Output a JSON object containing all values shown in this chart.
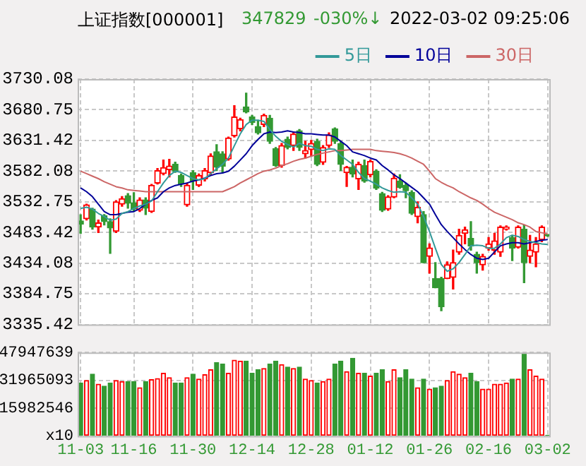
{
  "chart_data": [
    {
      "type": "candlestick",
      "title": "上证指数[000001]",
      "annotations": [
        "347829",
        "-030%↓",
        "2022-03-02 09:25:06"
      ],
      "categories": [
        null,
        null,
        null,
        null,
        null,
        null,
        null,
        null,
        null,
        null,
        null,
        null,
        null,
        null,
        null,
        null,
        null,
        null,
        null,
        null,
        null,
        null,
        null,
        null,
        null,
        null,
        null,
        null,
        null,
        null,
        null,
        null,
        null,
        null,
        null,
        null,
        null,
        null,
        null,
        null,
        null,
        null,
        null,
        null,
        null,
        null,
        null,
        null,
        null,
        null,
        null,
        null,
        null,
        null,
        null,
        null,
        null,
        null,
        null,
        null,
        null,
        null,
        null,
        null,
        null,
        null,
        null,
        null,
        null,
        null,
        null,
        null,
        null,
        null,
        null,
        null,
        null,
        null,
        null,
        null
      ],
      "ohlc": [
        [
          3502,
          3512,
          3482,
          3497
        ],
        [
          3505.5,
          3529,
          3503.5,
          3527.8
        ],
        [
          3521,
          3522.4,
          3488.7,
          3492
        ],
        [
          3492,
          3503.5,
          3483.3,
          3498.8
        ],
        [
          3510.3,
          3512.3,
          3495.4,
          3500.8
        ],
        [
          3500.8,
          3505.5,
          3449.7,
          3490.7
        ],
        [
          3485.4,
          3534.5,
          3483.3,
          3532.5
        ],
        [
          3529,
          3541.2,
          3525.7,
          3537.8
        ],
        [
          3542.6,
          3545.9,
          3522.4,
          3530.4
        ],
        [
          3531.1,
          3547.3,
          3517,
          3521
        ],
        [
          3519,
          3539.2,
          3517,
          3535.8
        ],
        [
          3535.8,
          3539.2,
          3512.3,
          3522.4
        ],
        [
          3517,
          3560.7,
          3515.6,
          3559.4
        ],
        [
          3562.7,
          3586.3,
          3561.4,
          3583
        ],
        [
          3578.2,
          3599.8,
          3576.2,
          3587.6
        ],
        [
          3584.3,
          3601.1,
          3572.8,
          3590.3
        ],
        [
          3593,
          3596.4,
          3580.2,
          3581.6
        ],
        [
          3574.9,
          3577.6,
          3557.4,
          3561.4
        ],
        [
          3527.8,
          3562.7,
          3525.7,
          3559.4
        ],
        [
          3579.6,
          3583,
          3552.7,
          3566.1
        ],
        [
          3559.4,
          3577.6,
          3557.4,
          3574.9
        ],
        [
          3569.5,
          3586.3,
          3566.1,
          3583
        ],
        [
          3579.6,
          3609.9,
          3576.2,
          3606.5
        ],
        [
          3613.2,
          3624.7,
          3583,
          3588.3
        ],
        [
          3609.9,
          3613.2,
          3579.6,
          3589.7
        ],
        [
          3601.8,
          3636.8,
          3599.8,
          3635.4
        ],
        [
          3638.8,
          3687.3,
          3636.8,
          3669.1
        ],
        [
          3650.2,
          3667.1,
          3646.9,
          3665
        ],
        [
          3685.2,
          3707.4,
          3675.8,
          3677.2
        ],
        [
          3669.1,
          3671.8,
          3657,
          3660.3
        ],
        [
          3653.8,
          3663.9,
          3641.7,
          3643.7
        ],
        [
          3657,
          3673.8,
          3653.6,
          3671.8
        ],
        [
          3667.1,
          3671.8,
          3626.7,
          3630
        ],
        [
          3618,
          3620,
          3589.7,
          3591
        ],
        [
          3591,
          3626.7,
          3588.3,
          3623.3
        ],
        [
          3633.4,
          3636.8,
          3618,
          3620
        ],
        [
          3623.3,
          3644.9,
          3615.2,
          3641.5
        ],
        [
          3646.9,
          3648.9,
          3615.2,
          3620
        ],
        [
          3609.9,
          3630,
          3603.1,
          3615.2
        ],
        [
          3616.6,
          3631.4,
          3606.5,
          3626.7
        ],
        [
          3630,
          3633.4,
          3591,
          3593
        ],
        [
          3596.4,
          3623.3,
          3593,
          3620
        ],
        [
          3623.3,
          3643.5,
          3620,
          3640.2
        ],
        [
          3650.2,
          3651.6,
          3626.7,
          3630
        ],
        [
          3626.7,
          3630,
          3583,
          3593
        ],
        [
          3579.6,
          3589.7,
          3557.4,
          3588.3
        ],
        [
          3588.3,
          3599.8,
          3572.8,
          3577.6
        ],
        [
          3569.5,
          3596.4,
          3552.7,
          3593
        ],
        [
          3591,
          3599.8,
          3564.1,
          3566.1
        ],
        [
          3576.2,
          3599.8,
          3572.8,
          3597.7
        ],
        [
          3581.6,
          3584.3,
          3552.7,
          3554.7
        ],
        [
          3545.9,
          3547.9,
          3517,
          3519
        ],
        [
          3521,
          3542.6,
          3519,
          3540.5
        ],
        [
          3540.5,
          3577.6,
          3539.2,
          3570.8
        ],
        [
          3566.1,
          3576.2,
          3554.7,
          3556
        ],
        [
          3559.4,
          3562.7,
          3539.2,
          3550.6
        ],
        [
          3547.9,
          3550.6,
          3512.3,
          3514.3
        ],
        [
          3508.9,
          3532.5,
          3498.8,
          3523.7
        ],
        [
          3512.3,
          3517,
          3434.9,
          3434.9
        ],
        [
          3445,
          3465.2,
          3418.1,
          3458.4
        ],
        [
          3409.3,
          3434.9,
          3394.5,
          3394.5
        ],
        [
          3409.3,
          3411.3,
          3357.5,
          3364.2
        ],
        [
          3409.3,
          3436.2,
          3409.3,
          3431.5
        ],
        [
          3411.3,
          3455,
          3392.5,
          3434.9
        ],
        [
          3451.7,
          3488.7,
          3448.5,
          3478.6
        ],
        [
          3482,
          3492,
          3465.2,
          3487.9
        ],
        [
          3473.9,
          3500.8,
          3455,
          3461.8
        ],
        [
          3448.3,
          3451.7,
          3418.1,
          3434.9
        ],
        [
          3431.5,
          3448.3,
          3422.8,
          3445
        ],
        [
          3458.4,
          3475.3,
          3455,
          3465.2
        ],
        [
          3455,
          3482,
          3448.3,
          3469.9
        ],
        [
          3451.7,
          3494.1,
          3445,
          3492
        ],
        [
          3488.7,
          3494.1,
          3487.4,
          3492
        ],
        [
          3475.3,
          3478.6,
          3438.2,
          3458.4
        ],
        [
          3459.8,
          3494.1,
          3458.4,
          3492
        ],
        [
          3488.7,
          3495.5,
          3402.6,
          3434.9
        ],
        [
          3445,
          3478.6,
          3434.9,
          3455
        ],
        [
          3451.7,
          3475.3,
          3428.2,
          3465.2
        ],
        [
          3471.9,
          3494.1,
          3468.5,
          3492
        ],
        [
          3478,
          3479,
          3477,
          3478
        ]
      ],
      "colors": [
        "#339933",
        "#ff0000",
        "#339933",
        "#ff0000",
        "#339933",
        "#339933",
        "#ff0000",
        "#ff0000",
        "#339933",
        "#339933",
        "#ff0000",
        "#339933",
        "#ff0000",
        "#ff0000",
        "#ff0000",
        "#ff0000",
        "#339933",
        "#339933",
        "#ff0000",
        "#339933",
        "#ff0000",
        "#ff0000",
        "#ff0000",
        "#339933",
        "#339933",
        "#ff0000",
        "#ff0000",
        "#ff0000",
        "#339933",
        "#339933",
        "#339933",
        "#ff0000",
        "#339933",
        "#339933",
        "#ff0000",
        "#339933",
        "#ff0000",
        "#339933",
        "#ff0000",
        "#ff0000",
        "#339933",
        "#ff0000",
        "#ff0000",
        "#339933",
        "#339933",
        "#ff0000",
        "#339933",
        "#ff0000",
        "#339933",
        "#ff0000",
        "#339933",
        "#339933",
        "#ff0000",
        "#ff0000",
        "#339933",
        "#339933",
        "#339933",
        "#ff0000",
        "#339933",
        "#ff0000",
        "#339933",
        "#339933",
        "#ff0000",
        "#ff0000",
        "#ff0000",
        "#ff0000",
        "#339933",
        "#339933",
        "#ff0000",
        "#ff0000",
        "#ff0000",
        "#ff0000",
        "#ff0000",
        "#339933",
        "#ff0000",
        "#339933",
        "#ff0000",
        "#ff0000",
        "#ff0000",
        "#339933"
      ],
      "series": [
        {
          "name": "5日",
          "type": "line",
          "color": "#339999",
          "values": [
            3522,
            3524,
            3521,
            3514,
            3509,
            3503,
            3505,
            3514,
            3517,
            3522,
            3526,
            3529,
            3534,
            3549,
            3563,
            3575,
            3582,
            3580,
            3575,
            3570,
            3568,
            3570,
            3578,
            3586,
            3593,
            3603,
            3623,
            3642,
            3657,
            3664,
            3664,
            3662,
            3649,
            3638,
            3630,
            3625,
            3621,
            3627,
            3623,
            3622,
            3617,
            3615,
            3618,
            3617,
            3607,
            3600,
            3593,
            3580,
            3570,
            3566,
            3561,
            3555,
            3551,
            3548,
            3549,
            3548,
            3539,
            3529,
            3509,
            3485,
            3458,
            3432,
            3421,
            3425,
            3435,
            3448,
            3462,
            3463,
            3462,
            3458,
            3458,
            3465,
            3475,
            3479,
            3477,
            3472,
            3469,
            3467,
            3465,
            3464
          ]
        },
        {
          "name": "10日",
          "type": "line",
          "color": "#000099",
          "values": [
            3555,
            3549,
            3541,
            3529,
            3517,
            3512,
            3512,
            3514,
            3516,
            3517,
            3522,
            3529,
            3535,
            3539,
            3549,
            3555,
            3559,
            3561,
            3563,
            3566,
            3568,
            3571,
            3575,
            3578,
            3579,
            3582,
            3590,
            3600,
            3610,
            3623,
            3633,
            3642,
            3645,
            3644,
            3645,
            3647,
            3645,
            3644,
            3642,
            3642,
            3641,
            3640,
            3640,
            3637,
            3630,
            3623,
            3613,
            3610,
            3607,
            3603,
            3600,
            3591,
            3584,
            3576,
            3570,
            3563,
            3556,
            3549,
            3539,
            3529,
            3512,
            3496,
            3485,
            3475,
            3465,
            3456,
            3448,
            3442,
            3440,
            3442,
            3452,
            3462,
            3465,
            3467,
            3467,
            3465,
            3467,
            3469,
            3471,
            3472
          ]
        },
        {
          "name": "30日",
          "type": "line",
          "color": "#cc6666",
          "values": [
            3582,
            3578,
            3574,
            3570,
            3565,
            3561,
            3557,
            3555,
            3552,
            3551,
            3550,
            3549,
            3549,
            3549,
            3549,
            3549,
            3549,
            3549,
            3549,
            3549,
            3549,
            3549,
            3549,
            3549,
            3549,
            3553,
            3557,
            3563,
            3568,
            3573,
            3578,
            3582,
            3584,
            3587,
            3591,
            3594,
            3598,
            3601,
            3603,
            3606,
            3609,
            3611,
            3613,
            3615,
            3615,
            3616,
            3617,
            3617,
            3617,
            3617,
            3615,
            3614,
            3613,
            3612,
            3610,
            3607,
            3603,
            3598,
            3593,
            3582,
            3570,
            3564,
            3559,
            3555,
            3549,
            3544,
            3539,
            3535,
            3529,
            3522,
            3516,
            3512,
            3508,
            3504,
            3499,
            3496,
            3492,
            3485,
            3483,
            3481
          ]
        }
      ],
      "ylim": [
        3335.42,
        3730.08
      ],
      "yticks": [
        3335.42,
        3384.75,
        3434.08,
        3483.42,
        3532.75,
        3582.08,
        3631.42,
        3680.75,
        3730.08
      ],
      "grid": true,
      "legend": "top right",
      "tick_labels": "y",
      "marker": "none",
      "line_style": "solid"
    },
    {
      "type": "bar",
      "categories": [
        "11-03",
        null,
        null,
        null,
        null,
        null,
        null,
        null,
        null,
        "11-16",
        null,
        null,
        null,
        null,
        null,
        null,
        null,
        null,
        null,
        "11-30",
        null,
        null,
        null,
        null,
        null,
        null,
        null,
        null,
        null,
        "12-14",
        null,
        null,
        null,
        null,
        null,
        null,
        null,
        null,
        null,
        "12-28",
        null,
        null,
        null,
        null,
        null,
        null,
        null,
        null,
        null,
        "01-12",
        null,
        null,
        null,
        null,
        null,
        null,
        null,
        null,
        null,
        "01-26",
        null,
        null,
        null,
        null,
        null,
        null,
        null,
        null,
        null,
        "02-16",
        null,
        null,
        null,
        null,
        null,
        null,
        null,
        null,
        null,
        "03-02"
      ],
      "values": [
        30500000,
        31900000,
        35500000,
        29700000,
        28600000,
        30500000,
        31900000,
        31300000,
        31300000,
        31300000,
        27700000,
        31300000,
        32400000,
        33000000,
        36000000,
        33500000,
        30500000,
        30500000,
        33500000,
        35500000,
        32700000,
        35200000,
        38000000,
        42100000,
        41300000,
        36000000,
        43500000,
        43000000,
        43000000,
        36000000,
        38000000,
        38800000,
        41300000,
        43000000,
        41000000,
        39600000,
        38800000,
        39600000,
        32700000,
        31900000,
        30500000,
        31300000,
        32700000,
        41300000,
        43000000,
        36900000,
        44600000,
        36000000,
        36000000,
        34400000,
        36000000,
        38000000,
        31300000,
        38000000,
        33500000,
        38000000,
        32700000,
        27700000,
        32700000,
        26900000,
        27700000,
        28600000,
        31900000,
        36900000,
        35500000,
        33500000,
        36000000,
        31300000,
        26900000,
        26900000,
        29700000,
        29700000,
        30500000,
        32700000,
        32700000,
        47500000,
        38000000,
        34400000,
        32700000,
        500000
      ],
      "colors": [
        "#339933",
        "#ff0000",
        "#339933",
        "#ff0000",
        "#339933",
        "#339933",
        "#ff0000",
        "#ff0000",
        "#339933",
        "#339933",
        "#ff0000",
        "#339933",
        "#ff0000",
        "#ff0000",
        "#ff0000",
        "#ff0000",
        "#339933",
        "#339933",
        "#ff0000",
        "#339933",
        "#ff0000",
        "#ff0000",
        "#ff0000",
        "#339933",
        "#339933",
        "#ff0000",
        "#ff0000",
        "#ff0000",
        "#339933",
        "#339933",
        "#339933",
        "#ff0000",
        "#339933",
        "#339933",
        "#ff0000",
        "#339933",
        "#ff0000",
        "#339933",
        "#ff0000",
        "#ff0000",
        "#339933",
        "#ff0000",
        "#ff0000",
        "#339933",
        "#339933",
        "#ff0000",
        "#339933",
        "#ff0000",
        "#339933",
        "#ff0000",
        "#339933",
        "#339933",
        "#ff0000",
        "#ff0000",
        "#339933",
        "#339933",
        "#339933",
        "#ff0000",
        "#339933",
        "#ff0000",
        "#339933",
        "#339933",
        "#ff0000",
        "#ff0000",
        "#ff0000",
        "#ff0000",
        "#339933",
        "#339933",
        "#ff0000",
        "#ff0000",
        "#ff0000",
        "#ff0000",
        "#ff0000",
        "#339933",
        "#ff0000",
        "#339933",
        "#ff0000",
        "#ff0000",
        "#ff0000",
        "#339933"
      ],
      "ylim": [
        0,
        47947639
      ],
      "yticks": [
        {
          "value": 0,
          "label": "x10"
        },
        15982546,
        31965093,
        47947639
      ],
      "grid": true
    }
  ]
}
